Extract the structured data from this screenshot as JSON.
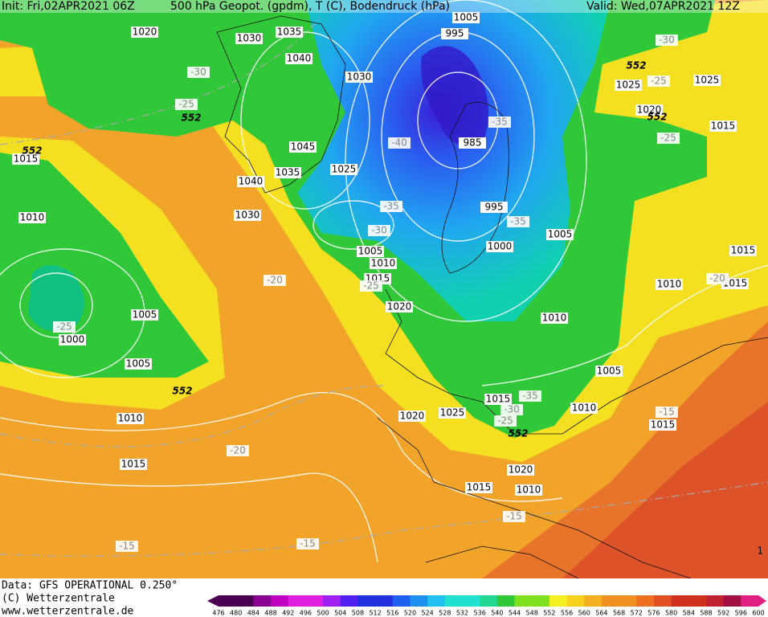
{
  "header": {
    "init": "Init: Fri,02APR2021 06Z",
    "title": "500 hPa Geopot. (gpdm), T (C), Bodendruck (hPa)",
    "valid": "Valid: Wed,07APR2021 12Z"
  },
  "pressure_labels": [
    "1020",
    "1030",
    "1035",
    "1040",
    "1030",
    "1045",
    "1035",
    "1025",
    "1040",
    "1030",
    "1015",
    "1010",
    "1005",
    "1000",
    "1005",
    "1010",
    "1015",
    "1005",
    "1010",
    "1015",
    "1020",
    "1020",
    "1025",
    "985",
    "995",
    "1000",
    "1005",
    "1010",
    "1005",
    "1015",
    "1010",
    "1020",
    "1015",
    "1010",
    "1025",
    "1025",
    "1020",
    "1015",
    "1015",
    "1010",
    "1015",
    "1015",
    "1005",
    "995"
  ],
  "temperature_labels": [
    "-30",
    "-25",
    "-30",
    "-25",
    "-25",
    "-40",
    "-35",
    "-35",
    "-30",
    "-35",
    "-20",
    "-25",
    "-25",
    "-20",
    "-35",
    "-30",
    "-25",
    "-15",
    "-15",
    "-15",
    "-15",
    "-20"
  ],
  "height_labels": [
    "552",
    "552",
    "552",
    "552",
    "552",
    "552"
  ],
  "colorbar": {
    "ticks": [
      476,
      480,
      484,
      488,
      492,
      496,
      500,
      504,
      508,
      512,
      516,
      520,
      524,
      528,
      532,
      536,
      540,
      544,
      548,
      552,
      556,
      560,
      564,
      568,
      572,
      576,
      580,
      584,
      588,
      592,
      596,
      600
    ]
  },
  "footer": {
    "data": "Data: GFS OPERATIONAL 0.250°",
    "copyright": "(C) Wetterzentrale",
    "url": "www.wetterzentrale.de"
  },
  "corner": "1"
}
